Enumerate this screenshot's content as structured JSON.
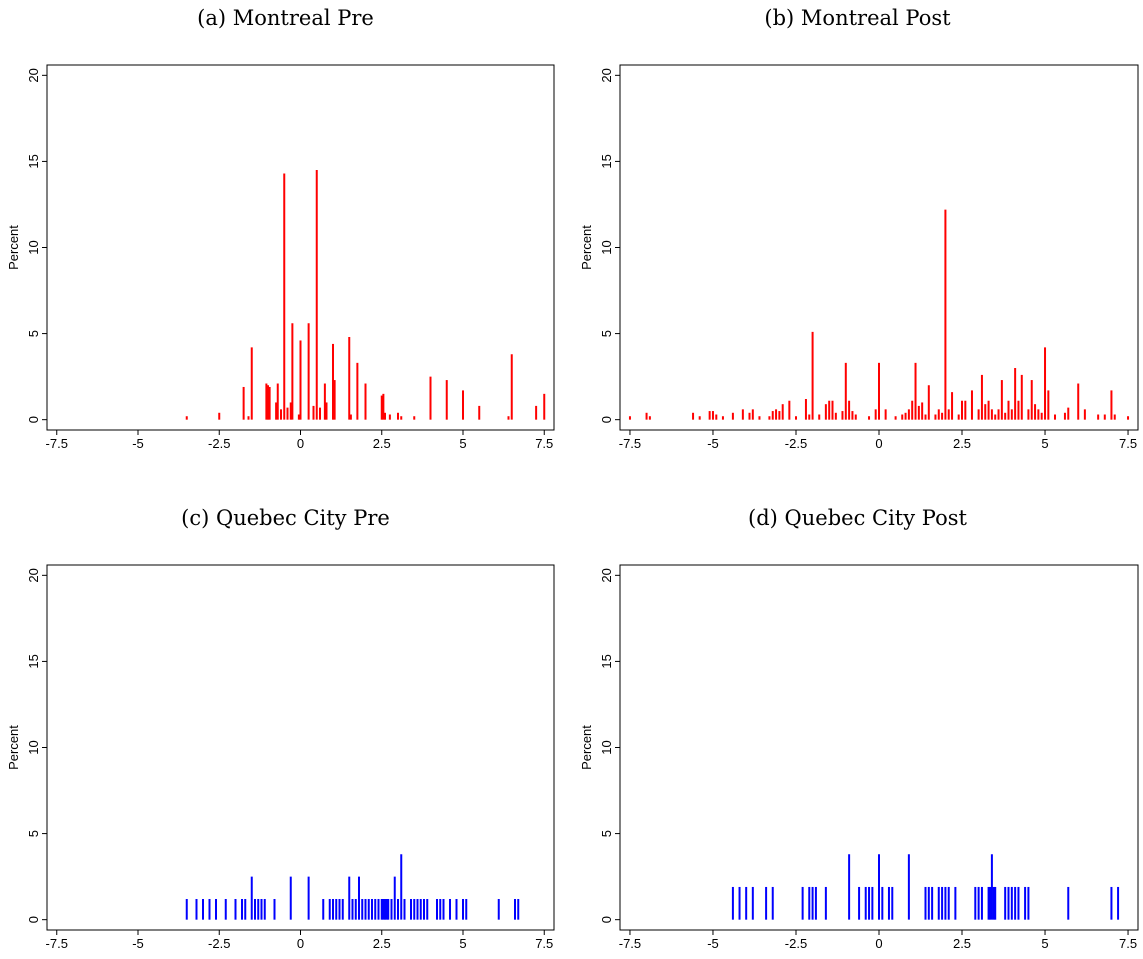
{
  "chart_data": [
    {
      "type": "bar",
      "title": "(a) Montreal Pre",
      "ylabel": "Percent",
      "xlabel": "",
      "xlim": [
        -7.8,
        7.8
      ],
      "ylim": [
        -0.6,
        20.6
      ],
      "xticks": [
        -7.5,
        -5,
        -2.5,
        0,
        2.5,
        5,
        7.5
      ],
      "xtick_labels": [
        "-7.5",
        "-5",
        "-2.5",
        "0",
        "2.5",
        "5",
        "7.5"
      ],
      "yticks": [
        0,
        5,
        10,
        15,
        20
      ],
      "ytick_labels": [
        "0",
        "5",
        "10",
        "15",
        "20"
      ],
      "grid": false,
      "color": "#ff0000",
      "x": [
        -3.5,
        -2.5,
        -1.75,
        -1.6,
        -1.5,
        -1.05,
        -1.0,
        -0.95,
        -0.75,
        -0.7,
        -0.6,
        -0.5,
        -0.4,
        -0.3,
        -0.25,
        -0.05,
        0.0,
        0.25,
        0.4,
        0.5,
        0.6,
        0.75,
        0.8,
        1.0,
        1.05,
        1.5,
        1.55,
        1.75,
        2.0,
        2.5,
        2.55,
        2.6,
        2.75,
        3.0,
        3.1,
        3.5,
        4.0,
        4.5,
        5.0,
        5.5,
        6.4,
        6.5,
        7.25,
        7.5
      ],
      "values": [
        0.2,
        0.4,
        1.9,
        0.2,
        4.2,
        2.1,
        2.0,
        1.9,
        1.0,
        2.1,
        0.6,
        14.3,
        0.7,
        1.0,
        5.6,
        0.3,
        4.6,
        5.6,
        0.8,
        14.5,
        0.7,
        2.1,
        1.0,
        4.4,
        2.3,
        4.8,
        0.3,
        3.3,
        2.1,
        1.4,
        1.5,
        0.4,
        0.3,
        0.4,
        0.2,
        0.2,
        2.5,
        2.3,
        1.7,
        0.8,
        0.2,
        3.8,
        0.8,
        1.5
      ]
    },
    {
      "type": "bar",
      "title": "(b) Montreal Post",
      "ylabel": "Percent",
      "xlabel": "",
      "xlim": [
        -7.8,
        7.8
      ],
      "ylim": [
        -0.6,
        20.6
      ],
      "xticks": [
        -7.5,
        -5,
        -2.5,
        0,
        2.5,
        5,
        7.5
      ],
      "xtick_labels": [
        "-7.5",
        "-5",
        "-2.5",
        "0",
        "2.5",
        "5",
        "7.5"
      ],
      "yticks": [
        0,
        5,
        10,
        15,
        20
      ],
      "ytick_labels": [
        "0",
        "5",
        "10",
        "15",
        "20"
      ],
      "grid": false,
      "color": "#ff0000",
      "x": [
        -7.5,
        -7.0,
        -6.9,
        -5.6,
        -5.4,
        -5.1,
        -5.0,
        -4.9,
        -4.7,
        -4.4,
        -4.1,
        -3.9,
        -3.8,
        -3.6,
        -3.3,
        -3.2,
        -3.1,
        -3.0,
        -2.9,
        -2.7,
        -2.5,
        -2.2,
        -2.1,
        -2.0,
        -1.8,
        -1.6,
        -1.5,
        -1.4,
        -1.3,
        -1.1,
        -1.0,
        -0.9,
        -0.8,
        -0.7,
        -0.3,
        -0.1,
        0.0,
        0.2,
        0.5,
        0.7,
        0.8,
        0.9,
        1.0,
        1.1,
        1.2,
        1.3,
        1.4,
        1.5,
        1.7,
        1.8,
        1.9,
        2.0,
        2.1,
        2.2,
        2.4,
        2.5,
        2.6,
        2.8,
        3.0,
        3.1,
        3.2,
        3.3,
        3.4,
        3.5,
        3.6,
        3.7,
        3.8,
        3.9,
        4.0,
        4.1,
        4.2,
        4.3,
        4.5,
        4.6,
        4.7,
        4.8,
        4.9,
        5.0,
        5.1,
        5.3,
        5.6,
        5.7,
        6.0,
        6.2,
        6.6,
        6.8,
        7.0,
        7.1,
        7.5
      ],
      "values": [
        0.2,
        0.4,
        0.2,
        0.4,
        0.2,
        0.5,
        0.5,
        0.3,
        0.2,
        0.4,
        0.6,
        0.4,
        0.6,
        0.2,
        0.2,
        0.5,
        0.6,
        0.5,
        0.9,
        1.1,
        0.2,
        1.2,
        0.3,
        5.1,
        0.3,
        0.9,
        1.1,
        1.1,
        0.4,
        0.5,
        3.3,
        1.1,
        0.5,
        0.3,
        0.2,
        0.6,
        3.3,
        0.6,
        0.2,
        0.3,
        0.4,
        0.6,
        1.1,
        3.3,
        0.8,
        1.0,
        0.3,
        2.0,
        0.3,
        0.6,
        0.4,
        12.2,
        0.6,
        1.6,
        0.3,
        1.1,
        1.1,
        1.7,
        0.6,
        2.6,
        0.9,
        1.1,
        0.6,
        0.3,
        0.6,
        2.3,
        0.4,
        1.1,
        0.6,
        3.0,
        1.1,
        2.6,
        0.6,
        2.3,
        0.9,
        0.6,
        0.4,
        4.2,
        1.7,
        0.3,
        0.4,
        0.7,
        2.1,
        0.6,
        0.3,
        0.3,
        1.7,
        0.3,
        0.2
      ]
    },
    {
      "type": "bar",
      "title": "(c) Quebec City Pre",
      "ylabel": "Percent",
      "xlabel": "",
      "xlim": [
        -7.8,
        7.8
      ],
      "ylim": [
        -0.6,
        20.6
      ],
      "xticks": [
        -7.5,
        -5,
        -2.5,
        0,
        2.5,
        5,
        7.5
      ],
      "xtick_labels": [
        "-7.5",
        "-5",
        "-2.5",
        "0",
        "2.5",
        "5",
        "7.5"
      ],
      "yticks": [
        0,
        5,
        10,
        15,
        20
      ],
      "ytick_labels": [
        "0",
        "5",
        "10",
        "15",
        "20"
      ],
      "grid": false,
      "color": "#0000ff",
      "x": [
        -3.5,
        -3.2,
        -3.0,
        -2.8,
        -2.6,
        -2.3,
        -2.0,
        -1.8,
        -1.7,
        -1.5,
        -1.4,
        -1.3,
        -1.2,
        -1.1,
        -0.8,
        -0.3,
        0.25,
        0.7,
        0.9,
        1.0,
        1.1,
        1.2,
        1.3,
        1.5,
        1.6,
        1.7,
        1.8,
        1.9,
        2.0,
        2.1,
        2.2,
        2.3,
        2.4,
        2.5,
        2.55,
        2.6,
        2.65,
        2.7,
        2.8,
        2.9,
        3.0,
        3.1,
        3.2,
        3.4,
        3.5,
        3.6,
        3.7,
        3.8,
        3.9,
        4.2,
        4.3,
        4.4,
        4.6,
        4.8,
        5.0,
        5.1,
        6.1,
        6.6,
        6.7
      ],
      "values": [
        1.2,
        1.2,
        1.2,
        1.2,
        1.2,
        1.2,
        1.2,
        1.2,
        1.2,
        2.5,
        1.2,
        1.2,
        1.2,
        1.2,
        1.2,
        2.5,
        2.5,
        1.2,
        1.2,
        1.2,
        1.2,
        1.2,
        1.2,
        2.5,
        1.2,
        1.2,
        2.5,
        1.2,
        1.2,
        1.2,
        1.2,
        1.2,
        1.2,
        1.2,
        1.2,
        1.2,
        1.2,
        1.2,
        1.2,
        2.5,
        1.2,
        3.8,
        1.2,
        1.2,
        1.2,
        1.2,
        1.2,
        1.2,
        1.2,
        1.2,
        1.2,
        1.2,
        1.2,
        1.2,
        1.2,
        1.2,
        1.2,
        1.2,
        1.2
      ]
    },
    {
      "type": "bar",
      "title": "(d) Quebec City Post",
      "ylabel": "Percent",
      "xlabel": "",
      "xlim": [
        -7.8,
        7.8
      ],
      "ylim": [
        -0.6,
        20.6
      ],
      "xticks": [
        -7.5,
        -5,
        -2.5,
        0,
        2.5,
        5,
        7.5
      ],
      "xtick_labels": [
        "-7.5",
        "-5",
        "-2.5",
        "0",
        "2.5",
        "5",
        "7.5"
      ],
      "yticks": [
        0,
        5,
        10,
        15,
        20
      ],
      "ytick_labels": [
        "0",
        "5",
        "10",
        "15",
        "20"
      ],
      "grid": false,
      "color": "#0000ff",
      "x": [
        -4.4,
        -4.2,
        -4.0,
        -3.8,
        -3.4,
        -3.2,
        -2.3,
        -2.1,
        -2.0,
        -1.9,
        -1.6,
        -0.9,
        -0.6,
        -0.4,
        -0.3,
        -0.2,
        0.0,
        0.1,
        0.3,
        0.4,
        0.9,
        1.4,
        1.5,
        1.6,
        1.8,
        1.9,
        2.0,
        2.1,
        2.3,
        2.9,
        3.0,
        3.1,
        3.3,
        3.35,
        3.4,
        3.45,
        3.5,
        3.8,
        3.9,
        4.0,
        4.1,
        4.2,
        4.4,
        4.5,
        5.7,
        7.0,
        7.2
      ],
      "values": [
        1.9,
        1.9,
        1.9,
        1.9,
        1.9,
        1.9,
        1.9,
        1.9,
        1.9,
        1.9,
        1.9,
        3.8,
        1.9,
        1.9,
        1.9,
        1.9,
        3.8,
        1.9,
        1.9,
        1.9,
        3.8,
        1.9,
        1.9,
        1.9,
        1.9,
        1.9,
        1.9,
        1.9,
        1.9,
        1.9,
        1.9,
        1.9,
        1.9,
        1.9,
        3.8,
        1.9,
        1.9,
        1.9,
        1.9,
        1.9,
        1.9,
        1.9,
        1.9,
        1.9,
        1.9,
        1.9,
        1.9
      ]
    }
  ]
}
